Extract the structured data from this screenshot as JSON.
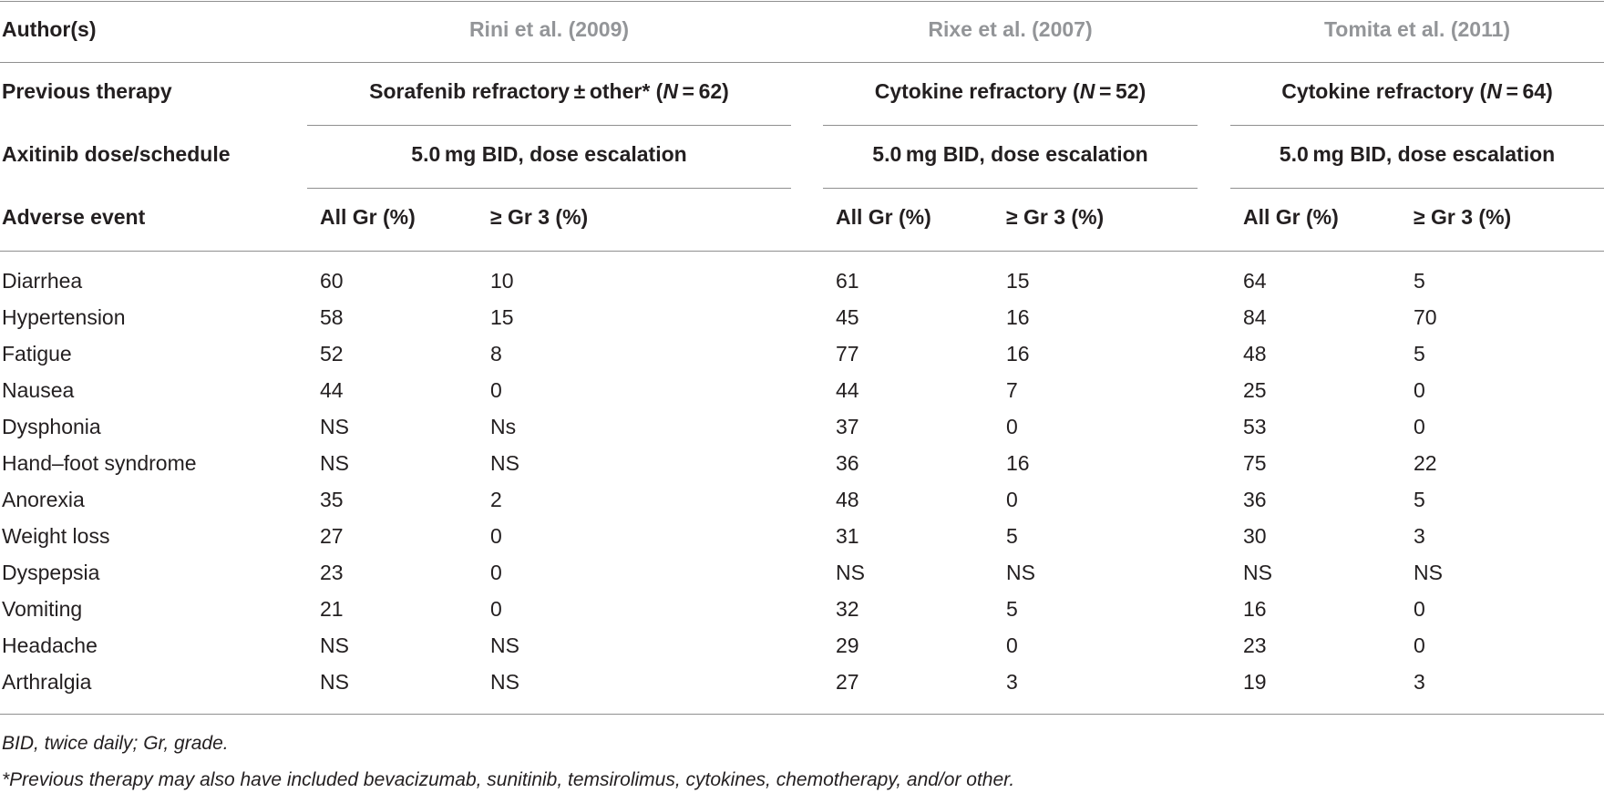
{
  "header": {
    "author_label": "Author(s)",
    "studies": [
      "Rini et al. (2009)",
      "Rixe et al. (2007)",
      "Tomita et al. (2011)"
    ],
    "therapy_label": "Previous therapy",
    "therapy": [
      {
        "prefix": "Sorafenib refractory ± other* (",
        "n_label": "N",
        "n_suffix": " = 62)"
      },
      {
        "prefix": "Cytokine refractory (",
        "n_label": "N",
        "n_suffix": " = 52)"
      },
      {
        "prefix": "Cytokine refractory (",
        "n_label": "N",
        "n_suffix": " = 64)"
      }
    ],
    "dose_label": "Axitinib dose/schedule",
    "dose": [
      "5.0 mg BID, dose escalation",
      "5.0 mg BID, dose escalation",
      "5.0 mg BID, dose escalation"
    ],
    "ae_label": "Adverse event",
    "all_gr": "All Gr (%)",
    "gr3": "≥ Gr 3 (%)"
  },
  "rows": [
    {
      "event": "Diarrhea",
      "v": [
        "60",
        "10",
        "61",
        "15",
        "64",
        "5"
      ]
    },
    {
      "event": "Hypertension",
      "v": [
        "58",
        "15",
        "45",
        "16",
        "84",
        "70"
      ]
    },
    {
      "event": "Fatigue",
      "v": [
        "52",
        "8",
        "77",
        "16",
        "48",
        "5"
      ]
    },
    {
      "event": "Nausea",
      "v": [
        "44",
        "0",
        "44",
        "7",
        "25",
        "0"
      ]
    },
    {
      "event": "Dysphonia",
      "v": [
        "NS",
        "Ns",
        "37",
        "0",
        "53",
        "0"
      ]
    },
    {
      "event": "Hand–foot syndrome",
      "v": [
        "NS",
        "NS",
        "36",
        "16",
        "75",
        "22"
      ]
    },
    {
      "event": "Anorexia",
      "v": [
        "35",
        "2",
        "48",
        "0",
        "36",
        "5"
      ]
    },
    {
      "event": "Weight loss",
      "v": [
        "27",
        "0",
        "31",
        "5",
        "30",
        "3"
      ]
    },
    {
      "event": "Dyspepsia",
      "v": [
        "23",
        "0",
        "NS",
        "NS",
        "NS",
        "NS"
      ]
    },
    {
      "event": "Vomiting",
      "v": [
        "21",
        "0",
        "32",
        "5",
        "16",
        "0"
      ]
    },
    {
      "event": "Headache",
      "v": [
        "NS",
        "NS",
        "29",
        "0",
        "23",
        "0"
      ]
    },
    {
      "event": "Arthralgia",
      "v": [
        "NS",
        "NS",
        "27",
        "3",
        "19",
        "3"
      ]
    }
  ],
  "footnotes": [
    "BID, twice daily; Gr, grade.",
    "*Previous therapy may also have included bevacizumab, sunitinib, temsirolimus, cytokines, chemotherapy, and/or other."
  ]
}
